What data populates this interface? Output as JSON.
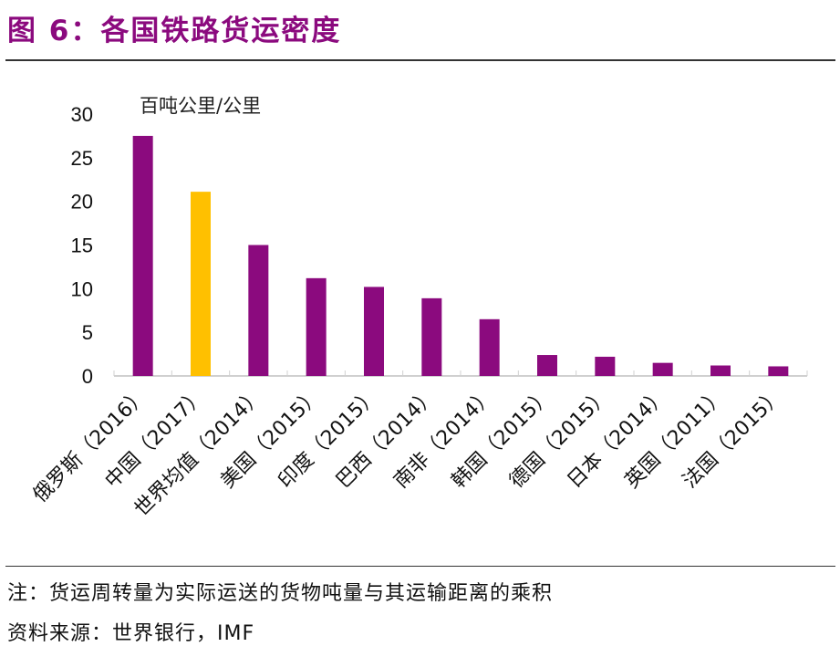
{
  "title": "图 6：各国铁路货运密度",
  "chart_data": {
    "type": "bar",
    "title": "图 6：各国铁路货运密度",
    "ylabel": "百吨公里/公里",
    "ylim": [
      0,
      30
    ],
    "yticks": [
      0,
      5,
      10,
      15,
      20,
      25,
      30
    ],
    "categories": [
      "俄罗斯（2016）",
      "中国（2017）",
      "世界均值（2014）",
      "美国（2015）",
      "印度（2015）",
      "巴西（2014）",
      "南非（2014）",
      "韩国（2015）",
      "德国（2015）",
      "日本（2014）",
      "英国（2011）",
      "法国（2015）"
    ],
    "values": [
      27.5,
      21.1,
      15.0,
      11.2,
      10.2,
      8.9,
      6.5,
      2.4,
      2.2,
      1.5,
      1.2,
      1.1
    ],
    "colors": {
      "default": "#8B0A7E",
      "highlight": "#FFC000",
      "highlight_index": 1
    },
    "grid": false,
    "legend": "none"
  },
  "notes": {
    "note": "注：货运周转量为实际运送的货物吨量与其运输距离的乘积",
    "source": "资料来源：世界银行，IMF"
  }
}
